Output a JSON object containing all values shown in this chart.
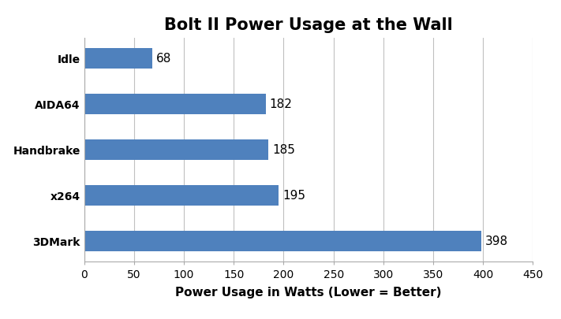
{
  "title": "Bolt II Power Usage at the Wall",
  "xlabel": "Power Usage in Watts (Lower = Better)",
  "categories": [
    "3DMark",
    "x264",
    "Handbrake",
    "AIDA64",
    "Idle"
  ],
  "values": [
    398,
    195,
    185,
    182,
    68
  ],
  "bar_color": "#4F81BD",
  "xlim": [
    0,
    450
  ],
  "xticks": [
    0,
    50,
    100,
    150,
    200,
    250,
    300,
    350,
    400,
    450
  ],
  "title_fontsize": 15,
  "label_fontsize": 11,
  "tick_fontsize": 10,
  "value_fontsize": 11,
  "background_color": "#ffffff",
  "grid_color": "#c0c0c0",
  "bar_height": 0.45
}
